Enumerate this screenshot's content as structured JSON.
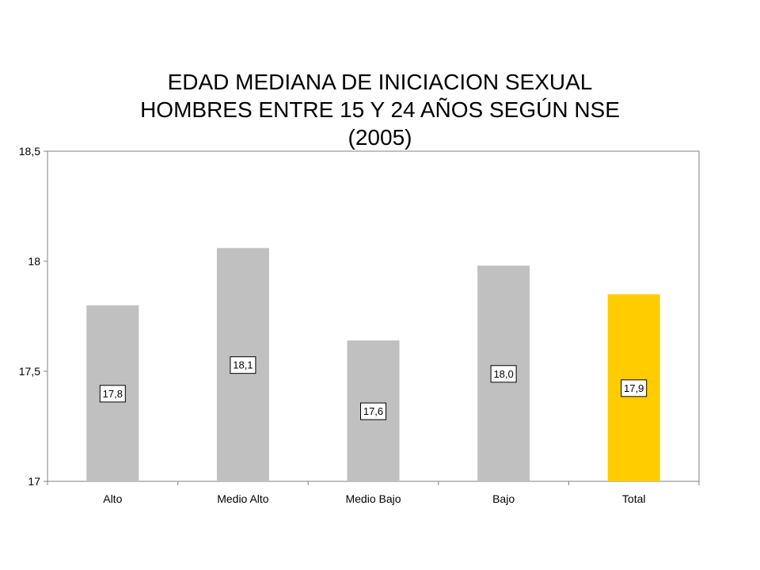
{
  "chart_data": {
    "type": "bar",
    "title_lines": [
      "EDAD MEDIANA DE INICIACION SEXUAL",
      "HOMBRES ENTRE 15 Y 24 AÑOS SEGÚN NSE",
      "(2005)"
    ],
    "categories": [
      "Alto",
      "Medio Alto",
      "Medio Bajo",
      "Bajo",
      "Total"
    ],
    "values": [
      17.8,
      18.06,
      17.64,
      17.98,
      17.85
    ],
    "data_labels": [
      "17,8",
      "18,1",
      "17,6",
      "18,0",
      "17,9"
    ],
    "bar_colors": [
      "#c0c0c0",
      "#c0c0c0",
      "#c0c0c0",
      "#c0c0c0",
      "#ffcc00"
    ],
    "ylim": [
      17,
      18.5
    ],
    "yticks": [
      17,
      17.5,
      18,
      18.5
    ],
    "ytick_labels": [
      "17",
      "17,5",
      "18",
      "18,5"
    ],
    "xlabel": "",
    "ylabel": "",
    "grid": false,
    "legend": "none"
  }
}
